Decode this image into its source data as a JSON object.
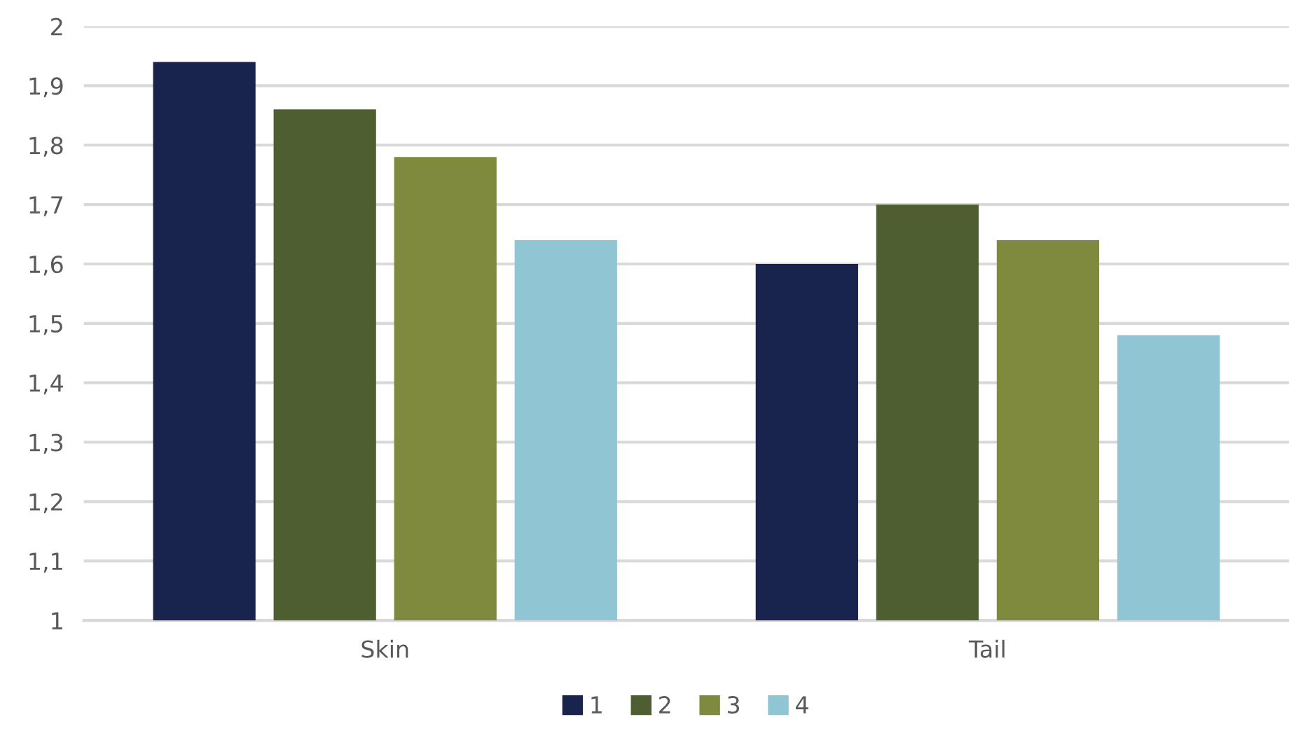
{
  "chart_data": {
    "type": "bar",
    "categories": [
      "Skin",
      "Tail"
    ],
    "series": [
      {
        "name": "1",
        "color": "#18234e",
        "values": [
          1.94,
          1.6
        ]
      },
      {
        "name": "2",
        "color": "#4e5e31",
        "values": [
          1.86,
          1.7
        ]
      },
      {
        "name": "3",
        "color": "#808a3f",
        "values": [
          1.78,
          1.64
        ]
      },
      {
        "name": "4",
        "color": "#90c5d3",
        "values": [
          1.64,
          1.48
        ]
      }
    ],
    "ylim": [
      1,
      2
    ],
    "yticks": [
      {
        "value": 1,
        "label": "1"
      },
      {
        "value": 1.1,
        "label": "1,1"
      },
      {
        "value": 1.2,
        "label": "1,2"
      },
      {
        "value": 1.3,
        "label": "1,3"
      },
      {
        "value": 1.4,
        "label": "1,4"
      },
      {
        "value": 1.5,
        "label": "1,5"
      },
      {
        "value": 1.6,
        "label": "1,6"
      },
      {
        "value": 1.7,
        "label": "1,7"
      },
      {
        "value": 1.8,
        "label": "1,8"
      },
      {
        "value": 1.9,
        "label": "1,9"
      },
      {
        "value": 2,
        "label": "2"
      }
    ],
    "grid": "y",
    "legend": "bottom"
  }
}
